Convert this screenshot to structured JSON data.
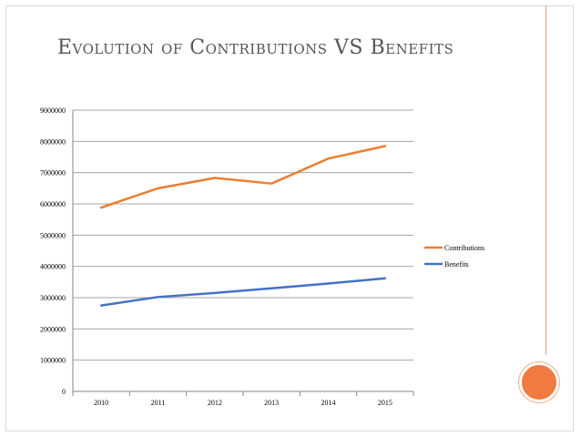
{
  "slide": {
    "title": "Evolution of Contributions VS Benefits"
  },
  "colors": {
    "contributions": "#ed7d31",
    "benefits": "#4472c4",
    "accent_circle": "#f07a3f",
    "rule": "#e39a7b",
    "grid": "#a6a6a6"
  },
  "chart_data": {
    "type": "line",
    "title": "",
    "xlabel": "",
    "ylabel": "",
    "x": [
      "2010",
      "2011",
      "2012",
      "2013",
      "2014",
      "2015"
    ],
    "ylim": [
      0,
      9000000
    ],
    "yticks": [
      "0",
      "1000000",
      "2000000",
      "3000000",
      "4000000",
      "5000000",
      "6000000",
      "7000000",
      "8000000",
      "9000000"
    ],
    "grid": true,
    "legend_position": "right",
    "series": [
      {
        "name": "Contributions",
        "color": "#ed7d31",
        "values": [
          5880000,
          6500000,
          6830000,
          6650000,
          7450000,
          7850000
        ]
      },
      {
        "name": "Benefits",
        "color": "#4472c4",
        "values": [
          2750000,
          3020000,
          3150000,
          3300000,
          3450000,
          3620000
        ]
      }
    ]
  }
}
